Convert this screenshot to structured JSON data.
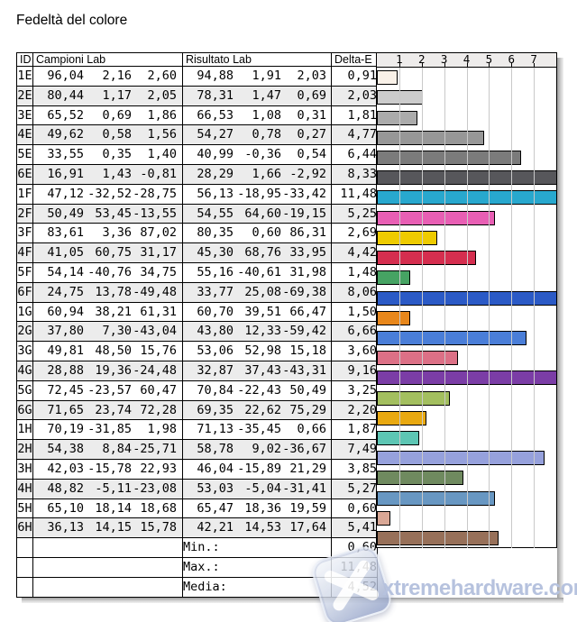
{
  "title": "Fedeltà del colore",
  "table": {
    "headers": {
      "id": "ID",
      "campioni": "Campioni Lab",
      "risultato": "Risultato Lab",
      "delta": "Delta-E"
    },
    "rows": [
      {
        "id": "1E",
        "campioni": [
          "96,04",
          "2,16",
          "2,60"
        ],
        "risultato": [
          "94,88",
          "1,91",
          "2,03"
        ],
        "delta_e": "0,91",
        "value": 0.91,
        "color": "#f9f1e8"
      },
      {
        "id": "2E",
        "campioni": [
          "80,44",
          "1,17",
          "2,05"
        ],
        "risultato": [
          "78,31",
          "1,47",
          "0,69"
        ],
        "delta_e": "2,03",
        "value": 2.03,
        "color": "#cccccc"
      },
      {
        "id": "3E",
        "campioni": [
          "65,52",
          "0,69",
          "1,86"
        ],
        "risultato": [
          "66,53",
          "1,08",
          "0,31"
        ],
        "delta_e": "1,81",
        "value": 1.81,
        "color": "#ababab"
      },
      {
        "id": "4E",
        "campioni": [
          "49,62",
          "0,58",
          "1,56"
        ],
        "risultato": [
          "54,27",
          "0,78",
          "0,27"
        ],
        "delta_e": "4,77",
        "value": 4.77,
        "color": "#979797"
      },
      {
        "id": "5E",
        "campioni": [
          "33,55",
          "0,35",
          "1,40"
        ],
        "risultato": [
          "40,99",
          "-0,36",
          "0,54"
        ],
        "delta_e": "6,44",
        "value": 6.44,
        "color": "#7b7b7b"
      },
      {
        "id": "6E",
        "campioni": [
          "16,91",
          "1,43",
          "-0,81"
        ],
        "risultato": [
          "28,29",
          "1,66",
          "-2,92"
        ],
        "delta_e": "8,33",
        "value": 8.33,
        "color": "#57575b"
      },
      {
        "id": "1F",
        "campioni": [
          "47,12",
          "-32,52",
          "-28,75"
        ],
        "risultato": [
          "56,13",
          "-18,95",
          "-33,42"
        ],
        "delta_e": "11,48",
        "value": 11.48,
        "color": "#28a8ce"
      },
      {
        "id": "2F",
        "campioni": [
          "50,49",
          "53,45",
          "-13,55"
        ],
        "risultato": [
          "54,55",
          "64,60",
          "-19,15"
        ],
        "delta_e": "5,25",
        "value": 5.25,
        "color": "#e85fb4"
      },
      {
        "id": "3F",
        "campioni": [
          "83,61",
          "3,36",
          "87,02"
        ],
        "risultato": [
          "80,35",
          "0,60",
          "86,31"
        ],
        "delta_e": "2,69",
        "value": 2.69,
        "color": "#eecb00"
      },
      {
        "id": "4F",
        "campioni": [
          "41,05",
          "60,75",
          "31,17"
        ],
        "risultato": [
          "45,30",
          "68,76",
          "33,95"
        ],
        "delta_e": "4,42",
        "value": 4.42,
        "color": "#d52e4f"
      },
      {
        "id": "5F",
        "campioni": [
          "54,14",
          "-40,76",
          "34,75"
        ],
        "risultato": [
          "55,16",
          "-40,61",
          "31,98"
        ],
        "delta_e": "1,48",
        "value": 1.48,
        "color": "#46a363"
      },
      {
        "id": "6F",
        "campioni": [
          "24,75",
          "13,78",
          "-49,48"
        ],
        "risultato": [
          "33,77",
          "25,08",
          "-69,38"
        ],
        "delta_e": "8,06",
        "value": 8.06,
        "color": "#2b5ac6"
      },
      {
        "id": "1G",
        "campioni": [
          "60,94",
          "38,21",
          "61,31"
        ],
        "risultato": [
          "60,70",
          "39,51",
          "66,47"
        ],
        "delta_e": "1,50",
        "value": 1.5,
        "color": "#e8871b"
      },
      {
        "id": "2G",
        "campioni": [
          "37,80",
          "7,30",
          "-43,04"
        ],
        "risultato": [
          "43,80",
          "12,33",
          "-59,42"
        ],
        "delta_e": "6,66",
        "value": 6.66,
        "color": "#4a7ed8"
      },
      {
        "id": "3G",
        "campioni": [
          "49,81",
          "48,50",
          "15,76"
        ],
        "risultato": [
          "53,06",
          "52,98",
          "15,18"
        ],
        "delta_e": "3,60",
        "value": 3.6,
        "color": "#dc7086"
      },
      {
        "id": "4G",
        "campioni": [
          "28,88",
          "19,36",
          "-24,48"
        ],
        "risultato": [
          "32,87",
          "37,43",
          "-43,31"
        ],
        "delta_e": "9,16",
        "value": 9.16,
        "color": "#7b3da6"
      },
      {
        "id": "5G",
        "campioni": [
          "72,45",
          "-23,57",
          "60,47"
        ],
        "risultato": [
          "70,84",
          "-22,43",
          "50,49"
        ],
        "delta_e": "3,25",
        "value": 3.25,
        "color": "#a3bf5f"
      },
      {
        "id": "6G",
        "campioni": [
          "71,65",
          "23,74",
          "72,28"
        ],
        "risultato": [
          "69,35",
          "22,62",
          "75,29"
        ],
        "delta_e": "2,20",
        "value": 2.2,
        "color": "#e9a911"
      },
      {
        "id": "1H",
        "campioni": [
          "70,19",
          "-31,85",
          "1,98"
        ],
        "risultato": [
          "71,13",
          "-35,45",
          "0,66"
        ],
        "delta_e": "1,87",
        "value": 1.87,
        "color": "#5dc6b4"
      },
      {
        "id": "2H",
        "campioni": [
          "54,38",
          "8,84",
          "-25,71"
        ],
        "risultato": [
          "58,78",
          "9,02",
          "-36,67"
        ],
        "delta_e": "7,49",
        "value": 7.49,
        "color": "#96a1dc"
      },
      {
        "id": "3H",
        "campioni": [
          "42,03",
          "-15,78",
          "22,93"
        ],
        "risultato": [
          "46,04",
          "-15,89",
          "21,29"
        ],
        "delta_e": "3,85",
        "value": 3.85,
        "color": "#6f8a5f"
      },
      {
        "id": "4H",
        "campioni": [
          "48,82",
          "-5,11",
          "-23,08"
        ],
        "risultato": [
          "53,03",
          "-5,04",
          "-31,41"
        ],
        "delta_e": "5,27",
        "value": 5.27,
        "color": "#6897c2"
      },
      {
        "id": "5H",
        "campioni": [
          "65,10",
          "18,14",
          "18,68"
        ],
        "risultato": [
          "65,47",
          "18,36",
          "19,59"
        ],
        "delta_e": "0,60",
        "value": 0.6,
        "color": "#d9a795"
      },
      {
        "id": "6H",
        "campioni": [
          "36,13",
          "14,15",
          "15,78"
        ],
        "risultato": [
          "42,21",
          "14,53",
          "17,64"
        ],
        "delta_e": "5,41",
        "value": 5.41,
        "color": "#977059"
      }
    ],
    "summary": [
      {
        "label": "Min.:",
        "value": "0,60"
      },
      {
        "label": "Max.:",
        "value": "11,48"
      },
      {
        "label": "Media:",
        "value": "4,52"
      }
    ]
  },
  "chart": {
    "ticks": [
      "1",
      "2",
      "3",
      "4",
      "5",
      "6",
      "7"
    ],
    "xmax": 8
  },
  "chart_data": {
    "type": "bar",
    "orientation": "horizontal",
    "title": "Fedeltà del colore",
    "categories": [
      "1E",
      "2E",
      "3E",
      "4E",
      "5E",
      "6E",
      "1F",
      "2F",
      "3F",
      "4F",
      "5F",
      "6F",
      "1G",
      "2G",
      "3G",
      "4G",
      "5G",
      "6G",
      "1H",
      "2H",
      "3H",
      "4H",
      "5H",
      "6H"
    ],
    "values": [
      0.91,
      2.03,
      1.81,
      4.77,
      6.44,
      8.33,
      11.48,
      5.25,
      2.69,
      4.42,
      1.48,
      8.06,
      1.5,
      6.66,
      3.6,
      9.16,
      3.25,
      2.2,
      1.87,
      7.49,
      3.85,
      5.27,
      0.6,
      5.41
    ],
    "xlabel": "Delta-E",
    "ylabel": "",
    "xlim": [
      0,
      8
    ],
    "xticks": [
      1,
      2,
      3,
      4,
      5,
      6,
      7
    ],
    "grid": true,
    "legend": false,
    "bars_clipped_at_xmax": [
      "6E",
      "1F",
      "6F",
      "4G"
    ],
    "summary": {
      "min": 0.6,
      "max": 11.48,
      "media": 4.52
    }
  },
  "watermark": {
    "text": "xtremehardware.com",
    "color": "#b6c2de"
  }
}
